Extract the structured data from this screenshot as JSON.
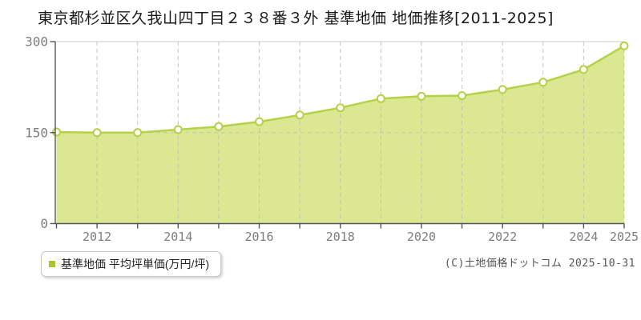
{
  "title": "東京都杉並区久我山四丁目２３８番３外 基準地価 地価推移[2011-2025]",
  "legend": {
    "label": "基準地価 平均坪単価(万円/坪)",
    "bullet_color": "#a6ca2e"
  },
  "copyright": "(C)土地価格ドットコム 2025-10-31",
  "chart_data": {
    "type": "area",
    "title": "東京都杉並区久我山四丁目２３８番３外 基準地価 地価推移[2011-2025]",
    "x": [
      2011,
      2012,
      2013,
      2014,
      2015,
      2016,
      2017,
      2018,
      2019,
      2020,
      2021,
      2022,
      2023,
      2024,
      2025
    ],
    "series": [
      {
        "name": "基準地価 平均坪単価(万円/坪)",
        "values": [
          151,
          150,
          150,
          155,
          160,
          168,
          179,
          191,
          206,
          210,
          211,
          221,
          233,
          254,
          293
        ]
      }
    ],
    "ylim": [
      0,
      300
    ],
    "yticks": [
      0,
      150,
      300
    ],
    "xtick_labels": [
      2012,
      2014,
      2016,
      2018,
      2020,
      2022,
      2024,
      2025
    ],
    "grid": {
      "vertical": "dashed line at every year",
      "horizontal": "dashed line at y=150"
    },
    "legend_position": "bottom-left",
    "colors": {
      "area_fill": "#dbe891",
      "line": "#b3d248",
      "point_fill": "#ffffff",
      "point_stroke": "#b3d248",
      "grid": "#bdbdbd",
      "axis": "#555555",
      "top_border": "#cccccc",
      "tick_label": "#7d7d7d"
    }
  }
}
